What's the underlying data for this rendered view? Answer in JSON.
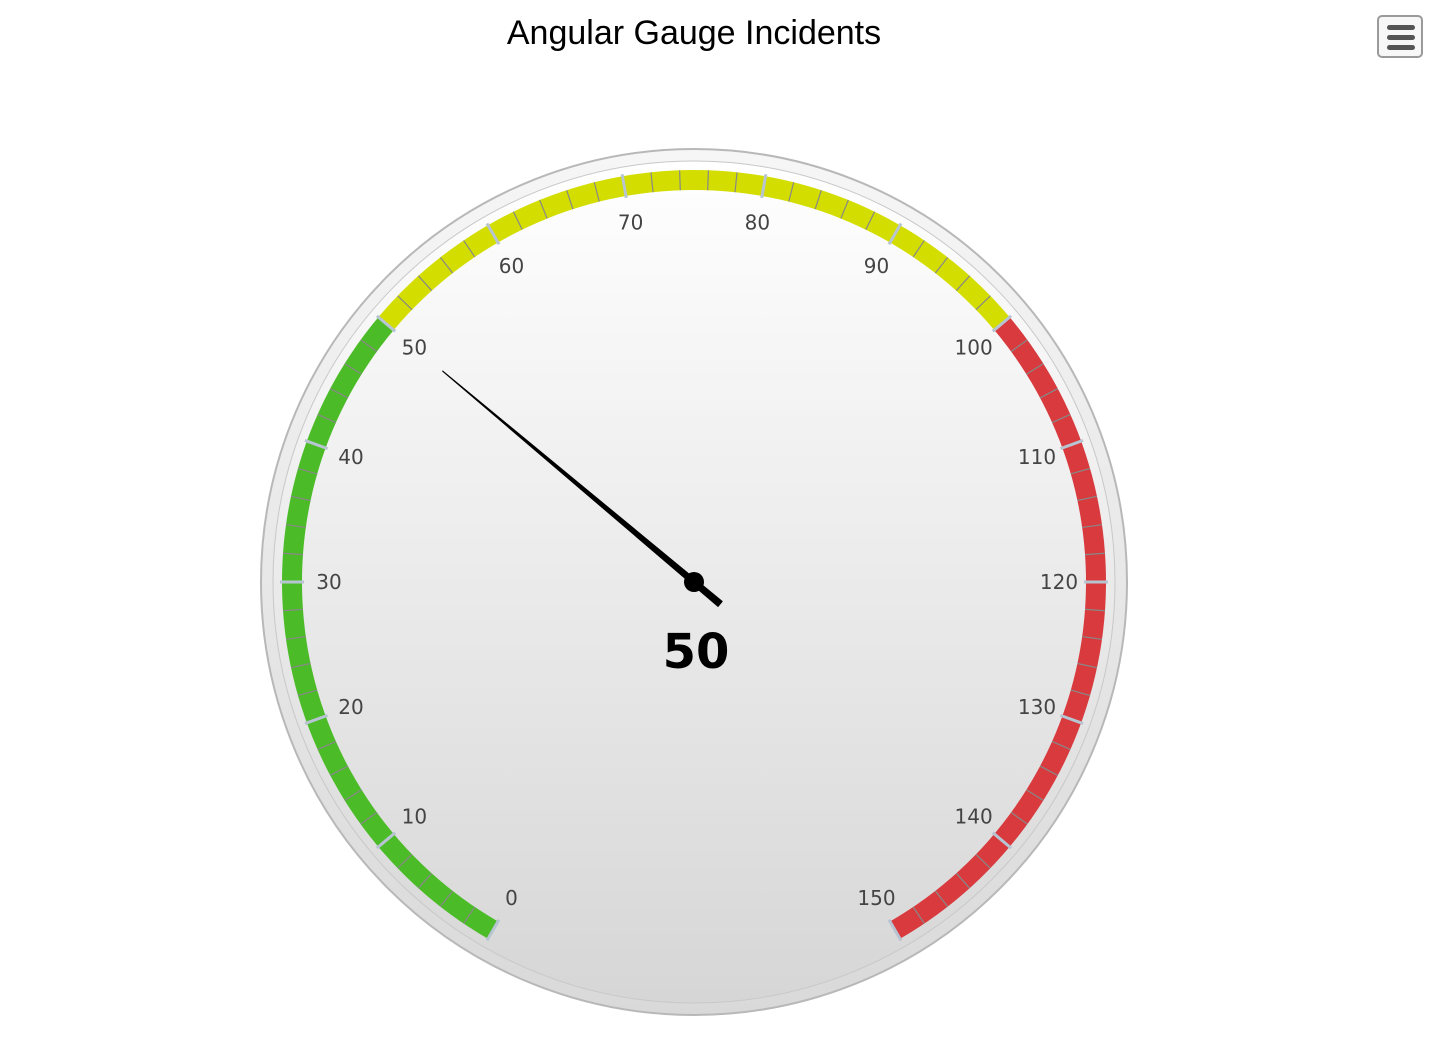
{
  "chart_data": {
    "type": "gauge",
    "title": "Angular Gauge Incidents",
    "value": 50,
    "value_label": "50",
    "min": 0,
    "max": 150,
    "major_tick_interval": 10,
    "minor_tick_interval": 2,
    "tick_labels": [
      "0",
      "10",
      "20",
      "30",
      "40",
      "50",
      "60",
      "70",
      "80",
      "90",
      "100",
      "110",
      "120",
      "130",
      "140",
      "150"
    ],
    "bands": [
      {
        "from": 0,
        "to": 50,
        "color": "#4cbb28"
      },
      {
        "from": 50,
        "to": 100,
        "color": "#d3de00"
      },
      {
        "from": 100,
        "to": 150,
        "color": "#d83a3e"
      }
    ]
  },
  "menu": {
    "icon": "hamburger-menu-icon"
  }
}
